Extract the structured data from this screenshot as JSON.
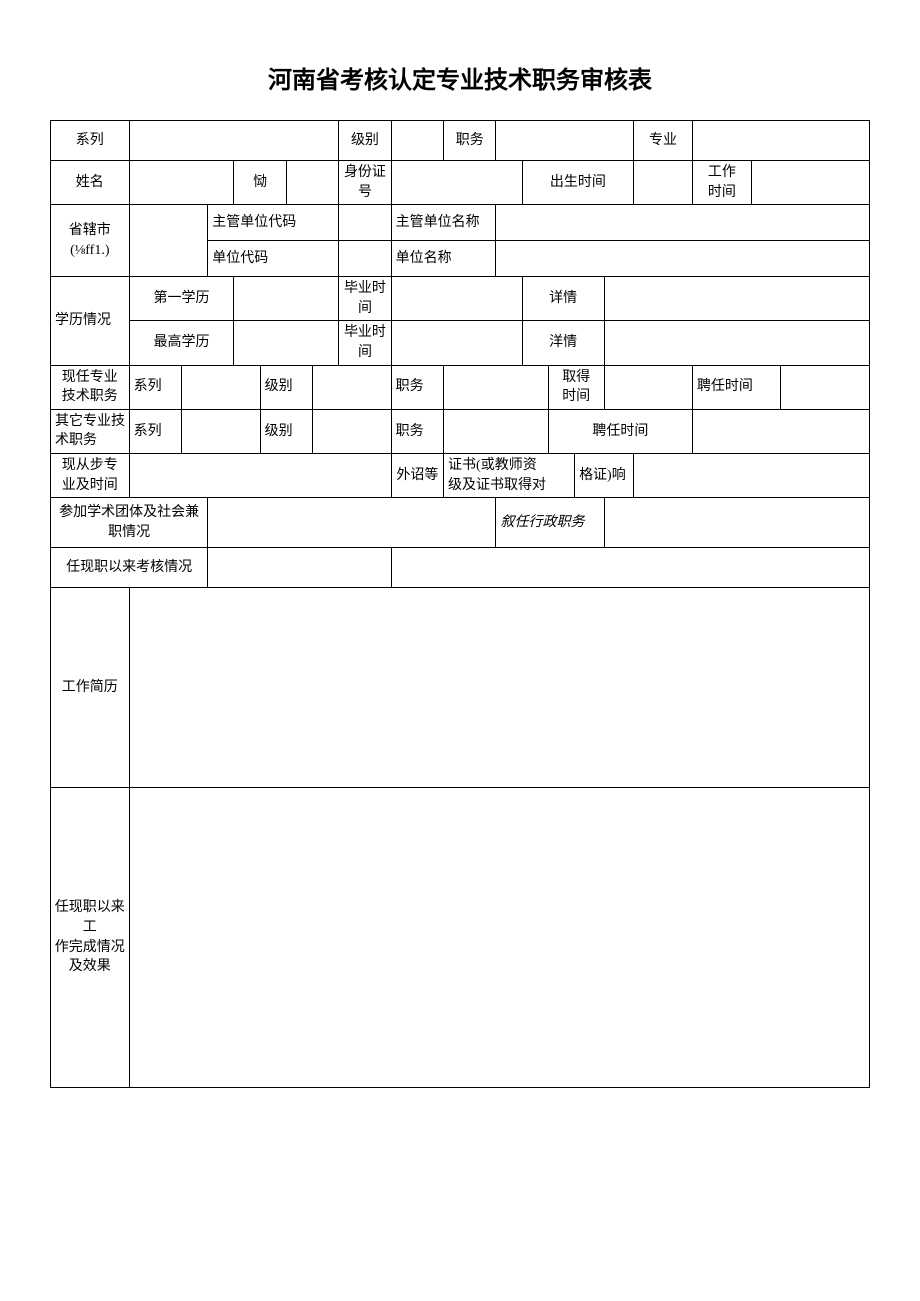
{
  "title": "河南省考核认定专业技术职务审核表",
  "row1": {
    "series": "系列",
    "level": "级别",
    "position": "职务",
    "major": "专业"
  },
  "row2": {
    "name": "姓名",
    "sex": "恸",
    "idno": "身份证号",
    "birth": "出生时间",
    "worktime": "工作\n时间"
  },
  "row3": {
    "city": "省辖市\n(⅛ff1.)",
    "deptcode": "主管单位代码",
    "deptname": "主管单位名称"
  },
  "row4": {
    "unitcode": "单位代码",
    "unitname": "单位名称"
  },
  "row5": {
    "edu": "学历情况",
    "first": "第一学历",
    "gradtime": "毕业时间",
    "detail": "详情"
  },
  "row6": {
    "highest": "最高学历",
    "gradtime": "毕业时间",
    "detail": "洋情"
  },
  "row7": {
    "curpos": "现任专业\n技术职务",
    "series": "系列",
    "level": "级别",
    "position": "职务",
    "gettime": "取得\n时间",
    "apptime": "聘任时间"
  },
  "row8": {
    "otherpos": "其它专业技术职务",
    "series": "系列",
    "level": "级别",
    "position": "职务",
    "apptime": "聘任时间"
  },
  "row9": {
    "nowmajor": "现从步专\n业及时间",
    "cert1": "外诏等",
    "cert2": "证书(或教师资\n级及证书取得对",
    "cert3": "格证)响"
  },
  "row10": {
    "academic": "参加学术团体及社会兼职情况",
    "admin": "叙任行政职务"
  },
  "row11": {
    "assess": "任现职以来考核情况"
  },
  "row12": {
    "resume": "工作简历"
  },
  "row13": {
    "workdone": "任现职以来工\n作完成情况及效果"
  }
}
